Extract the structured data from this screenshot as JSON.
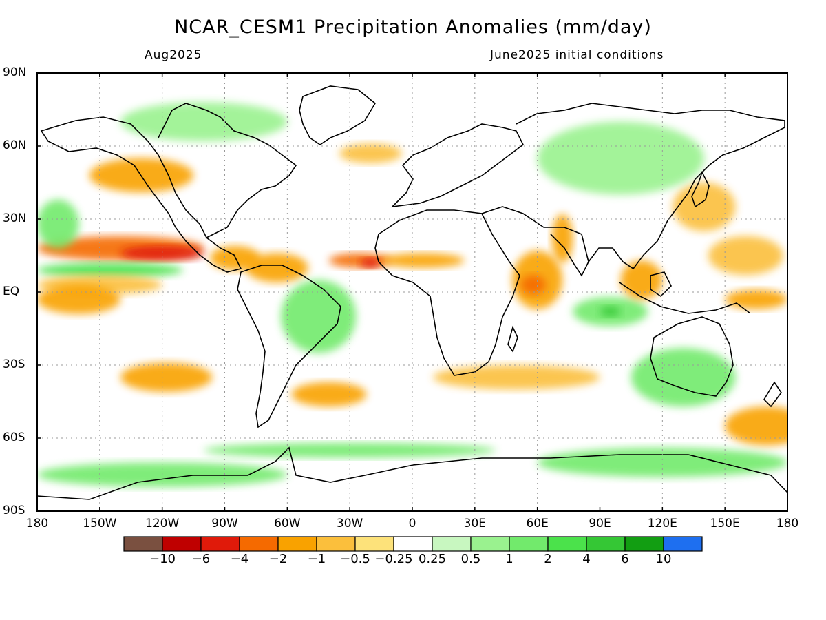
{
  "header": {
    "title": "NCAR_CESM1 Precipitation Anomalies (mm/day)",
    "valid_month": "Aug2025",
    "init_conditions": "June2025 initial conditions"
  },
  "axes": {
    "lat_labels": [
      "90N",
      "60N",
      "30N",
      "EQ",
      "30S",
      "60S",
      "90S"
    ],
    "lat_values": [
      90,
      60,
      30,
      0,
      -30,
      -60,
      -90
    ],
    "lon_labels": [
      "180",
      "150W",
      "120W",
      "90W",
      "60W",
      "30W",
      "0",
      "30E",
      "60E",
      "90E",
      "120E",
      "150E",
      "180"
    ],
    "lon_values": [
      -180,
      -150,
      -120,
      -90,
      -60,
      -30,
      0,
      30,
      60,
      90,
      120,
      150,
      180
    ]
  },
  "colorbar": {
    "colors": [
      "#7a5040",
      "#bf0000",
      "#e01a0a",
      "#f56a00",
      "#f9a200",
      "#fbbf3c",
      "#fde27a",
      "#ffffff",
      "#c8f7c0",
      "#9af28f",
      "#72ea6c",
      "#4be24b",
      "#35c735",
      "#129e12",
      "#1e6ff0"
    ],
    "labels": [
      "−10",
      "−6",
      "−4",
      "−2",
      "−1",
      "−0.5",
      "−0.25",
      "0.25",
      "0.5",
      "1",
      "2",
      "4",
      "6",
      "10"
    ]
  },
  "chart_data": {
    "type": "heatmap",
    "variable": "Precipitation Anomalies (mm/day)",
    "lon_range": [
      -180,
      180
    ],
    "lat_range": [
      -90,
      90
    ],
    "grid": "dotted, 30-degree",
    "anomaly_regions": [
      {
        "lon": -130,
        "lat": 48,
        "rx": 25,
        "ry": 7,
        "level": -1
      },
      {
        "lon": -140,
        "lat": 18,
        "rx": 40,
        "ry": 5,
        "level": -2
      },
      {
        "lon": -120,
        "lat": 16,
        "rx": 20,
        "ry": 3,
        "level": -4
      },
      {
        "lon": -145,
        "lat": 9,
        "rx": 35,
        "ry": 3,
        "level": 2
      },
      {
        "lon": -150,
        "lat": 3,
        "rx": 30,
        "ry": 4,
        "level": -0.5
      },
      {
        "lon": -160,
        "lat": -3,
        "rx": 20,
        "ry": 6,
        "level": -1
      },
      {
        "lon": -170,
        "lat": 28,
        "rx": 10,
        "ry": 10,
        "level": 1
      },
      {
        "lon": -85,
        "lat": 14,
        "rx": 12,
        "ry": 5,
        "level": -1
      },
      {
        "lon": -65,
        "lat": 10,
        "rx": 15,
        "ry": 6,
        "level": -1
      },
      {
        "lon": -25,
        "lat": 13,
        "rx": 15,
        "ry": 3,
        "level": -2
      },
      {
        "lon": -20,
        "lat": 12,
        "rx": 5,
        "ry": 2,
        "level": -4
      },
      {
        "lon": 5,
        "lat": 13,
        "rx": 20,
        "ry": 3,
        "level": -1
      },
      {
        "lon": -45,
        "lat": -10,
        "rx": 18,
        "ry": 15,
        "level": 1
      },
      {
        "lon": -118,
        "lat": -35,
        "rx": 22,
        "ry": 6,
        "level": -1
      },
      {
        "lon": -40,
        "lat": -42,
        "rx": 18,
        "ry": 5,
        "level": -1
      },
      {
        "lon": 50,
        "lat": -35,
        "rx": 40,
        "ry": 5,
        "level": -0.5
      },
      {
        "lon": -30,
        "lat": -65,
        "rx": 70,
        "ry": 3,
        "level": 1
      },
      {
        "lon": 60,
        "lat": 5,
        "rx": 12,
        "ry": 12,
        "level": -1
      },
      {
        "lon": 58,
        "lat": 3,
        "rx": 6,
        "ry": 4,
        "level": -2
      },
      {
        "lon": 72,
        "lat": 22,
        "rx": 5,
        "ry": 10,
        "level": -1
      },
      {
        "lon": 95,
        "lat": -8,
        "rx": 18,
        "ry": 6,
        "level": 1
      },
      {
        "lon": 95,
        "lat": -8,
        "rx": 5,
        "ry": 2,
        "level": 4
      },
      {
        "lon": 110,
        "lat": 5,
        "rx": 10,
        "ry": 8,
        "level": -1
      },
      {
        "lon": 140,
        "lat": 35,
        "rx": 15,
        "ry": 10,
        "level": -0.5
      },
      {
        "lon": 160,
        "lat": 15,
        "rx": 18,
        "ry": 8,
        "level": -0.5
      },
      {
        "lon": 165,
        "lat": -3,
        "rx": 15,
        "ry": 4,
        "level": -1
      },
      {
        "lon": 170,
        "lat": -55,
        "rx": 20,
        "ry": 8,
        "level": -1
      },
      {
        "lon": 130,
        "lat": -35,
        "rx": 25,
        "ry": 12,
        "level": 1
      },
      {
        "lon": 120,
        "lat": -70,
        "rx": 60,
        "ry": 6,
        "level": 1
      },
      {
        "lon": -120,
        "lat": -75,
        "rx": 60,
        "ry": 5,
        "level": 1
      },
      {
        "lon": 100,
        "lat": 55,
        "rx": 40,
        "ry": 15,
        "level": 0.5
      },
      {
        "lon": -100,
        "lat": 70,
        "rx": 40,
        "ry": 8,
        "level": 0.5
      },
      {
        "lon": -20,
        "lat": 57,
        "rx": 15,
        "ry": 4,
        "level": -0.5
      }
    ]
  }
}
